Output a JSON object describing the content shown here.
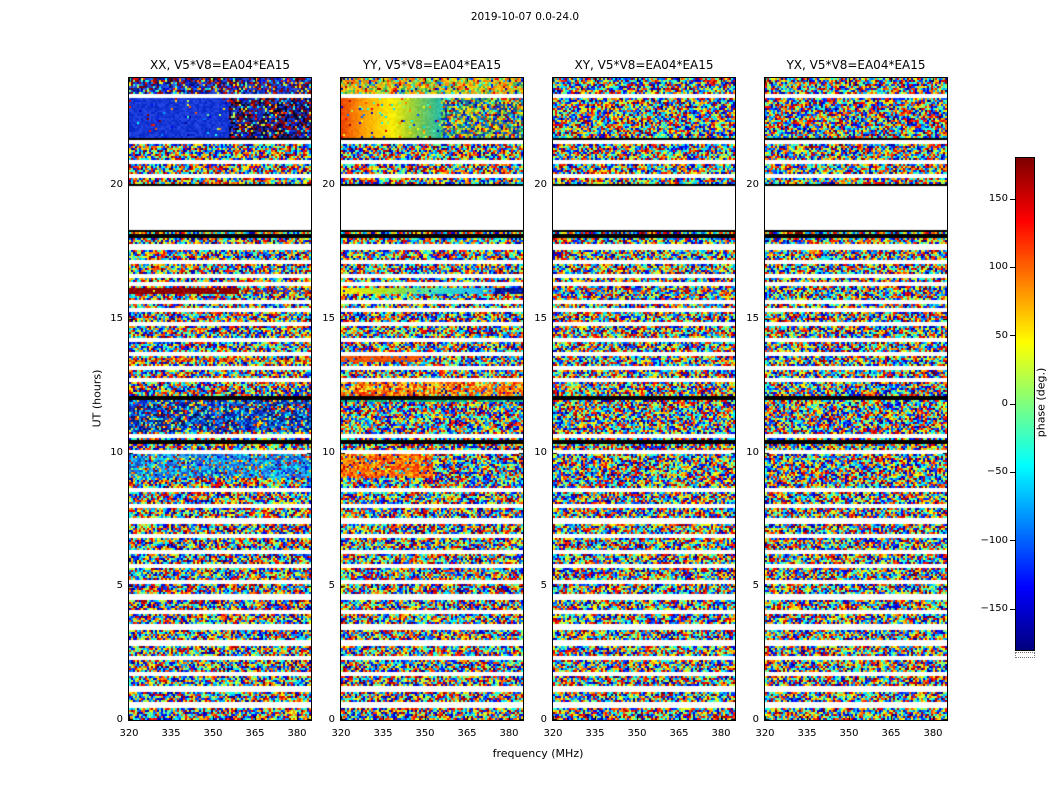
{
  "chart_data": {
    "type": "heatmap",
    "title": "2019-10-07 0.0-24.0",
    "xlabel": "frequency (MHz)",
    "ylabel": "UT (hours)",
    "xlim": [
      320,
      385
    ],
    "ylim": [
      0,
      24
    ],
    "xticks": [
      320,
      335,
      350,
      365,
      380
    ],
    "yticks": [
      0,
      5,
      10,
      15,
      20
    ],
    "colormap": "jet",
    "colorbar": {
      "label": "phase (deg.)",
      "range": [
        -180,
        180
      ],
      "ticks": [
        150,
        100,
        50,
        0,
        -50,
        -100,
        -150
      ]
    },
    "description": "Interferometric visibility phase vs frequency (320-385 MHz) and time (0-24 UT) for baseline V5*V8=EA04*EA15 on 2019-10-07. Four polarization panels (XX, YY, XY, YX). Background is decorrelated random phase noise; horizontal white bands are gaps between scans (a large gap spans ~18.4-19.9 UT, bounded by black flagged rows). Coherent phase regions are listed per panel as features (t in UT hours, f in MHz).",
    "gaps_ut": [
      [
        0.52,
        0.6
      ],
      [
        1.12,
        1.2
      ],
      [
        1.7,
        1.78
      ],
      [
        2.26,
        2.34
      ],
      [
        2.84,
        2.92
      ],
      [
        3.42,
        3.52
      ],
      [
        3.98,
        4.06
      ],
      [
        4.56,
        4.64
      ],
      [
        5.12,
        5.2
      ],
      [
        5.7,
        5.78
      ],
      [
        6.26,
        6.34
      ],
      [
        6.84,
        6.92
      ],
      [
        7.4,
        7.5
      ],
      [
        7.96,
        8.04
      ],
      [
        8.54,
        8.62
      ],
      [
        9.96,
        10.04
      ],
      [
        10.6,
        10.68
      ],
      [
        12.66,
        12.74
      ],
      [
        13.14,
        13.22
      ],
      [
        13.64,
        13.72
      ],
      [
        14.2,
        14.28
      ],
      [
        14.76,
        14.84
      ],
      [
        15.32,
        15.4
      ],
      [
        15.6,
        15.66
      ],
      [
        16.24,
        16.3
      ],
      [
        16.56,
        16.64
      ],
      [
        17.1,
        17.18
      ],
      [
        17.64,
        17.72
      ],
      [
        18.35,
        19.9
      ],
      [
        20.3,
        20.38
      ],
      [
        20.84,
        20.92
      ],
      [
        21.55,
        21.64
      ],
      [
        23.28,
        23.38
      ]
    ],
    "black_rows_ut": [
      [
        10.32,
        10.42
      ],
      [
        11.98,
        12.08
      ],
      [
        18.04,
        18.16
      ],
      [
        18.26,
        18.36
      ],
      [
        19.9,
        20.0
      ],
      [
        21.66,
        21.74
      ]
    ],
    "panels": [
      {
        "pol": "XX",
        "title": "XX, V5*V8=EA04*EA15",
        "features": [
          {
            "t0": 23.38,
            "t1": 24,
            "f0": 320,
            "f1": 385,
            "style": "mixed",
            "colors": [
              "#1535cc",
              "#001a80",
              "#8b0000",
              "#2b50e0"
            ],
            "noise_frac": 0.3
          },
          {
            "t0": 21.74,
            "t1": 23.28,
            "f0": 320,
            "f1": 356,
            "style": "solid",
            "colors": [
              "#1638d6"
            ],
            "noise_frac": 0.05
          },
          {
            "t0": 21.74,
            "t1": 23.28,
            "f0": 356,
            "f1": 385,
            "style": "mixed",
            "colors": [
              "#0a1a80",
              "#8b0000",
              "#1638d6",
              "#000028"
            ],
            "noise_frac": 0.22
          },
          {
            "t0": 15.9,
            "t1": 16.16,
            "f0": 320,
            "f1": 359,
            "style": "solid",
            "colors": [
              "#8f0000"
            ],
            "noise_frac": 0.04
          },
          {
            "t0": 15.9,
            "t1": 16.16,
            "f0": 359,
            "f1": 385,
            "style": "mixed",
            "colors": [
              "#990000",
              "#2244dd",
              "#cc4400"
            ],
            "noise_frac": 0.45
          },
          {
            "t0": 13.42,
            "t1": 13.56,
            "f0": 320,
            "f1": 385,
            "style": "mixed",
            "colors": [
              "#dd5500",
              "#ff9900",
              "#cc2200"
            ],
            "noise_frac": 0.45
          },
          {
            "t0": 10.8,
            "t1": 11.98,
            "f0": 320,
            "f1": 385,
            "style": "mixed",
            "colors": [
              "#1535cc",
              "#0033aa",
              "#0099ee",
              "#041a66"
            ],
            "noise_frac": 0.38
          },
          {
            "t0": 9.02,
            "t1": 9.92,
            "f0": 320,
            "f1": 385,
            "style": "mixed",
            "colors": [
              "#2fa8ee",
              "#1166dd",
              "#00cfe8",
              "#2255cc"
            ],
            "noise_frac": 0.3
          }
        ]
      },
      {
        "pol": "YY",
        "title": "YY, V5*V8=EA04*EA15",
        "features": [
          {
            "t0": 23.38,
            "t1": 24,
            "f0": 320,
            "f1": 385,
            "style": "mixed",
            "colors": [
              "#ffcc00",
              "#a8d838",
              "#ff8800",
              "#44bb66"
            ],
            "noise_frac": 0.3
          },
          {
            "t0": 21.74,
            "t1": 23.28,
            "f0": 320,
            "f1": 356,
            "style": "gradient-h",
            "colors": [
              "#ee4400",
              "#ffaa00",
              "#ffee00",
              "#88cc44",
              "#22bbaa"
            ],
            "noise_frac": 0.06
          },
          {
            "t0": 21.74,
            "t1": 23.28,
            "f0": 356,
            "f1": 385,
            "style": "mixed",
            "colors": [
              "#117788",
              "#ffcc00",
              "#2244aa",
              "#66cc44"
            ],
            "noise_frac": 0.4
          },
          {
            "t0": 15.9,
            "t1": 16.16,
            "f0": 320,
            "f1": 375,
            "style": "gradient-h",
            "colors": [
              "#ffee00",
              "#a0e030",
              "#33ddcc",
              "#22aaff"
            ],
            "noise_frac": 0.06
          },
          {
            "t0": 15.9,
            "t1": 16.16,
            "f0": 375,
            "f1": 385,
            "style": "solid",
            "colors": [
              "#00188f"
            ],
            "noise_frac": 0.08
          },
          {
            "t0": 13.4,
            "t1": 13.58,
            "f0": 320,
            "f1": 349,
            "style": "solid",
            "colors": [
              "#ee5500"
            ],
            "noise_frac": 0.12
          },
          {
            "t0": 12.1,
            "t1": 12.6,
            "f0": 320,
            "f1": 385,
            "style": "mixed",
            "colors": [
              "#ff6600",
              "#ffaa00",
              "#ee3300",
              "#ffdd33"
            ],
            "noise_frac": 0.3
          },
          {
            "t0": 11.88,
            "t1": 12.0,
            "f0": 320,
            "f1": 385,
            "style": "solid",
            "colors": [
              "#11bb88"
            ],
            "noise_frac": 0.2
          },
          {
            "t0": 9.02,
            "t1": 9.92,
            "f0": 320,
            "f1": 353,
            "style": "mixed",
            "colors": [
              "#ff5500",
              "#ff8800",
              "#ee2200",
              "#ffbb00"
            ],
            "noise_frac": 0.22
          }
        ]
      },
      {
        "pol": "XY",
        "title": "XY, V5*V8=EA04*EA15",
        "features": [
          {
            "t0": 15.9,
            "t1": 16.16,
            "f0": 320,
            "f1": 385,
            "style": "mixed",
            "colors": [
              "#cc2200",
              "#2244dd",
              "#ffaa00",
              "#00ccff"
            ],
            "noise_frac": 0.55
          }
        ]
      },
      {
        "pol": "YX",
        "title": "YX, V5*V8=EA04*EA15",
        "features": []
      }
    ]
  }
}
